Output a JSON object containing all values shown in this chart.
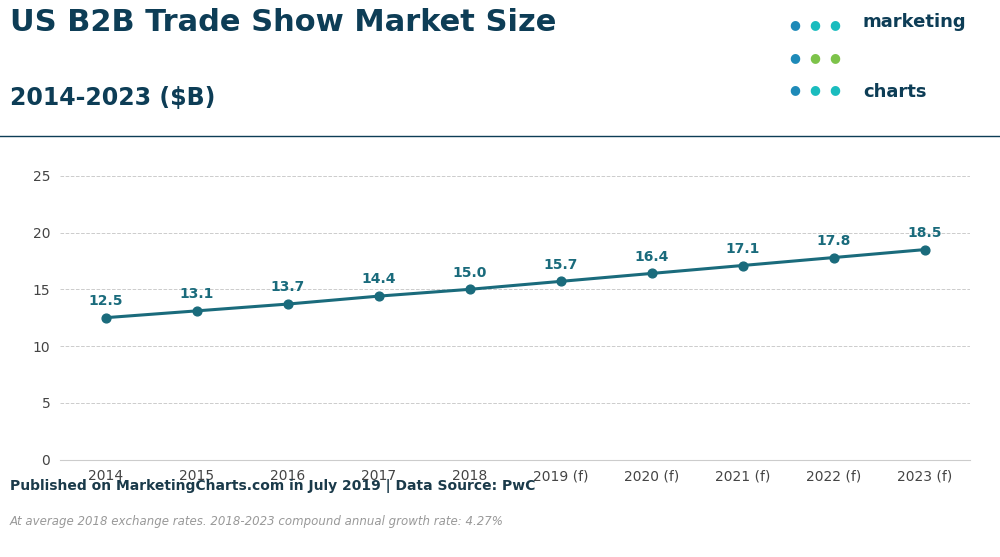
{
  "title_line1": "US B2B Trade Show Market Size",
  "title_line2": "2014-2023 ($B)",
  "title_color": "#0d3d56",
  "title_fontsize": 22,
  "subtitle_fontsize": 17,
  "years": [
    "2014",
    "2015",
    "2016",
    "2017",
    "2018",
    "2019 (f)",
    "2020 (f)",
    "2021 (f)",
    "2022 (f)",
    "2023 (f)"
  ],
  "values": [
    12.5,
    13.1,
    13.7,
    14.4,
    15.0,
    15.7,
    16.4,
    17.1,
    17.8,
    18.5
  ],
  "line_color": "#1a6b7c",
  "marker_color": "#1a6b7c",
  "ylim": [
    0,
    27
  ],
  "yticks": [
    0,
    5,
    10,
    15,
    20,
    25
  ],
  "bg_color": "#ffffff",
  "plot_bg_color": "#ffffff",
  "grid_color": "#cccccc",
  "footer_bg_color": "#b8c9d4",
  "footer_text": "Published on MarketingCharts.com in July 2019 | Data Source: PwC",
  "footer_text_color": "#1a3a4a",
  "footnote_text": "At average 2018 exchange rates. 2018-2023 compound annual growth rate: 4.27%",
  "footnote_color": "#999999",
  "label_fontsize": 10,
  "tick_fontsize": 10,
  "footer_fontsize": 10,
  "footnote_fontsize": 8.5,
  "logo_text1": "marketing",
  "logo_text2": "charts",
  "logo_color": "#0d3d56",
  "dot_grid": [
    [
      "#1e8ab8",
      "#1abcbe",
      "#1abcbe"
    ],
    [
      "#1e8ab8",
      "#7dc34a",
      "#7dc34a"
    ],
    [
      "#1e8ab8",
      "#1abcbe",
      "#1abcbe"
    ]
  ],
  "separator_color": "#0d3d56"
}
